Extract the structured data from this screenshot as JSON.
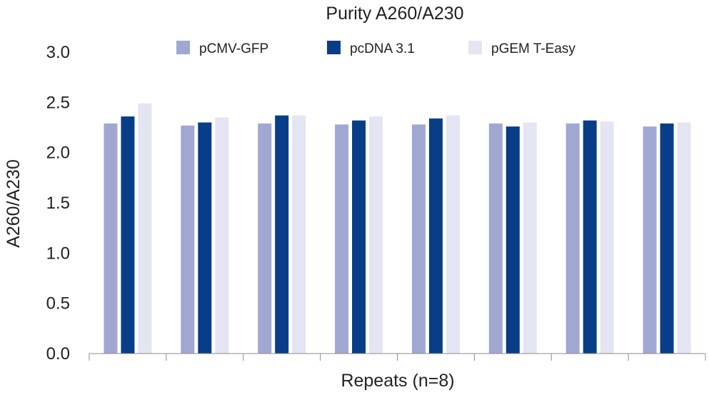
{
  "chart_data": {
    "type": "bar",
    "title": "Purity A260/A230",
    "xlabel": "Repeats (n=8)",
    "ylabel": "A260/A230",
    "ylim": [
      0,
      3
    ],
    "yticks": [
      "0.0",
      "0.5",
      "1.0",
      "1.5",
      "2.0",
      "2.5",
      "3.0"
    ],
    "grid": false,
    "legend_position": "top",
    "categories": [
      "",
      "",
      "",
      "",
      "",
      "",
      "",
      ""
    ],
    "series": [
      {
        "name": "pCMV-GFP",
        "color": "#a0a8d2",
        "values": [
          2.29,
          2.27,
          2.29,
          2.28,
          2.28,
          2.29,
          2.29,
          2.26
        ]
      },
      {
        "name": "pcDNA 3.1",
        "color": "#083e87",
        "values": [
          2.36,
          2.3,
          2.37,
          2.32,
          2.34,
          2.26,
          2.32,
          2.29
        ]
      },
      {
        "name": "pGEM T-Easy",
        "color": "#e3e5f3",
        "values": [
          2.49,
          2.35,
          2.37,
          2.36,
          2.37,
          2.3,
          2.31,
          2.3
        ]
      }
    ]
  }
}
